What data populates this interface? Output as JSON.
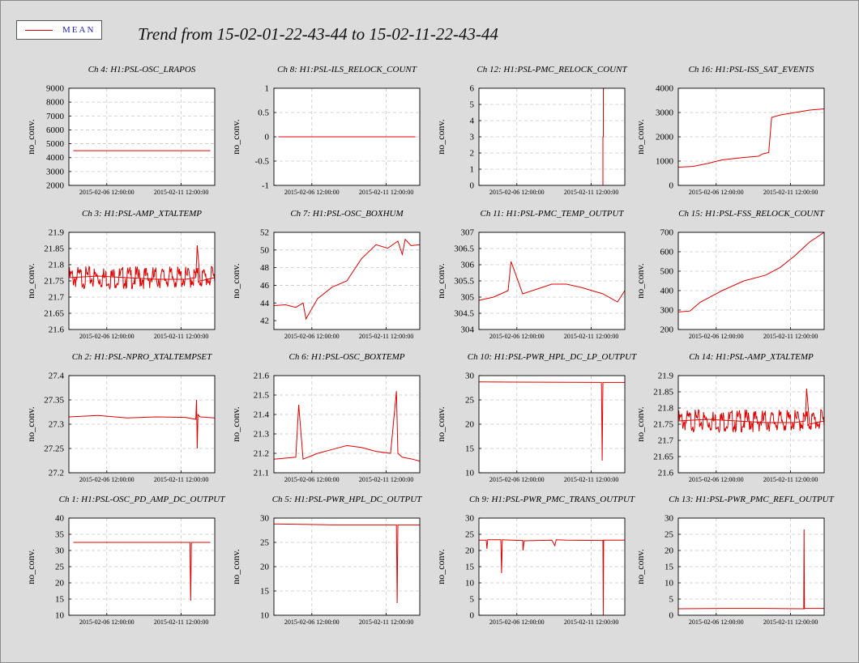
{
  "title": "Trend from 15-02-01-22-43-44 to 15-02-11-22-43-44",
  "legend": {
    "label": "MEAN",
    "color": "#e00000"
  },
  "colors": {
    "series": "#e00000",
    "grid": "#c8c8c8",
    "axis": "#000000",
    "background": "#dcdcdc",
    "plot": "#ffffff"
  },
  "chart_data": [
    {
      "type": "line",
      "title": "Ch 4: H1:PSL-OSC_LRAPOS",
      "ylabel": "no_conv.",
      "xticks": [
        "2015-02-06 12:00:00",
        "2015-02-11 12:00:00"
      ],
      "ylim": [
        2000,
        9000
      ],
      "yticks": [
        "2000",
        "3000",
        "4000",
        "5000",
        "6000",
        "7000",
        "8000",
        "9000"
      ],
      "series": [
        {
          "x": [
            0.03,
            0.97
          ],
          "y": [
            4500,
            4500
          ]
        }
      ]
    },
    {
      "type": "line",
      "title": "Ch 8: H1:PSL-ILS_RELOCK_COUNT",
      "ylabel": "no_conv.",
      "xticks": [
        "2015-02-06 12:00:00",
        "2015-02-11 12:00:00"
      ],
      "ylim": [
        -1,
        1
      ],
      "yticks": [
        "-1",
        "-0.5",
        "0",
        "0.5",
        "1"
      ],
      "series": [
        {
          "x": [
            0.03,
            0.97
          ],
          "y": [
            0,
            0
          ]
        }
      ]
    },
    {
      "type": "line",
      "title": "Ch 12: H1:PSL-PMC_RELOCK_COUNT",
      "ylabel": "no_conv.",
      "xticks": [
        "2015-02-06 12:00:00",
        "2015-02-11 12:00:00"
      ],
      "ylim": [
        0,
        6
      ],
      "yticks": [
        "0",
        "1",
        "2",
        "3",
        "4",
        "5",
        "6"
      ],
      "series": [
        {
          "x": [
            0.85,
            0.85,
            0.853,
            0.853,
            0.86,
            0.86
          ],
          "y": [
            0,
            3,
            3,
            6,
            6,
            6
          ]
        }
      ]
    },
    {
      "type": "line",
      "title": "Ch 16: H1:PSL-ISS_SAT_EVENTS",
      "ylabel": "no_conv.",
      "xticks": [
        "2015-02-06 12:00:00",
        "2015-02-11 12:00:00"
      ],
      "ylim": [
        0,
        4000
      ],
      "yticks": [
        "0",
        "1000",
        "2000",
        "3000",
        "4000"
      ],
      "series": [
        {
          "x": [
            0.0,
            0.1,
            0.2,
            0.3,
            0.45,
            0.55,
            0.58,
            0.62,
            0.64,
            0.7,
            0.8,
            0.9,
            1.0
          ],
          "y": [
            750,
            780,
            900,
            1050,
            1150,
            1200,
            1300,
            1350,
            2800,
            2900,
            3000,
            3100,
            3150
          ]
        }
      ]
    },
    {
      "type": "line",
      "title": "Ch 3: H1:PSL-AMP_XTALTEMP",
      "ylabel": "no_conv.",
      "xticks": [
        "2015-02-06 12:00:00",
        "2015-02-11 12:00:00"
      ],
      "ylim": [
        21.6,
        21.9
      ],
      "yticks": [
        "21.6",
        "21.65",
        "21.7",
        "21.75",
        "21.8",
        "21.85",
        "21.9"
      ],
      "series": [
        {
          "x": [
            0.0,
            0.2,
            0.4,
            0.6,
            0.8,
            0.87,
            0.88,
            0.9,
            1.0
          ],
          "y": [
            21.76,
            21.765,
            21.76,
            21.755,
            21.755,
            21.76,
            21.86,
            21.75,
            21.76
          ]
        }
      ]
    },
    {
      "type": "line",
      "title": "Ch 7: H1:PSL-OSC_BOXHUM",
      "ylabel": "no_conv.",
      "xticks": [
        "2015-02-06 12:00:00",
        "2015-02-11 12:00:00"
      ],
      "ylim": [
        41,
        52
      ],
      "yticks": [
        "42",
        "44",
        "46",
        "48",
        "50",
        "52"
      ],
      "series": [
        {
          "x": [
            0.0,
            0.08,
            0.15,
            0.2,
            0.22,
            0.3,
            0.4,
            0.5,
            0.6,
            0.7,
            0.78,
            0.85,
            0.88,
            0.9,
            0.94,
            1.0
          ],
          "y": [
            43.7,
            43.8,
            43.5,
            44,
            42.2,
            44.5,
            45.8,
            46.5,
            49,
            50.6,
            50.2,
            51,
            49.5,
            51.2,
            50.5,
            50.6
          ]
        }
      ]
    },
    {
      "type": "line",
      "title": "Ch 11: H1:PSL-PMC_TEMP_OUTPUT",
      "ylabel": "no_conv.",
      "xticks": [
        "2015-02-06 12:00:00",
        "2015-02-11 12:00:00"
      ],
      "ylim": [
        304,
        307
      ],
      "yticks": [
        "304",
        "304.5",
        "305",
        "305.5",
        "306",
        "306.5",
        "307"
      ],
      "series": [
        {
          "x": [
            0.0,
            0.1,
            0.2,
            0.22,
            0.3,
            0.5,
            0.6,
            0.7,
            0.85,
            0.95,
            1.0
          ],
          "y": [
            304.9,
            305.0,
            305.2,
            306.1,
            305.1,
            305.4,
            305.4,
            305.3,
            305.1,
            304.85,
            305.2
          ]
        }
      ]
    },
    {
      "type": "line",
      "title": "Ch 15: H1:PSL-FSS_RELOCK_COUNT",
      "ylabel": "no_conv.",
      "xticks": [
        "2015-02-06 12:00:00",
        "2015-02-11 12:00:00"
      ],
      "ylim": [
        200,
        700
      ],
      "yticks": [
        "200",
        "300",
        "400",
        "500",
        "600",
        "700"
      ],
      "series": [
        {
          "x": [
            0.0,
            0.08,
            0.15,
            0.3,
            0.45,
            0.6,
            0.7,
            0.8,
            0.9,
            1.0
          ],
          "y": [
            290,
            295,
            340,
            400,
            450,
            480,
            520,
            580,
            650,
            700
          ]
        }
      ]
    },
    {
      "type": "line",
      "title": "Ch 2: H1:PSL-NPRO_XTALTEMPSET",
      "ylabel": "no_conv.",
      "xticks": [
        "2015-02-06 12:00:00",
        "2015-02-11 12:00:00"
      ],
      "ylim": [
        27.2,
        27.4
      ],
      "yticks": [
        "27.2",
        "27.25",
        "27.3",
        "27.35",
        "27.4"
      ],
      "series": [
        {
          "x": [
            0.0,
            0.2,
            0.4,
            0.6,
            0.8,
            0.87,
            0.875,
            0.88,
            0.885,
            0.9,
            1.0
          ],
          "y": [
            27.315,
            27.318,
            27.313,
            27.315,
            27.314,
            27.31,
            27.35,
            27.25,
            27.32,
            27.315,
            27.313
          ]
        }
      ]
    },
    {
      "type": "line",
      "title": "Ch 6: H1:PSL-OSC_BOXTEMP",
      "ylabel": "no_conv.",
      "xticks": [
        "2015-02-06 12:00:00",
        "2015-02-11 12:00:00"
      ],
      "ylim": [
        21.1,
        21.6
      ],
      "yticks": [
        "21.1",
        "21.2",
        "21.3",
        "21.4",
        "21.5",
        "21.6"
      ],
      "series": [
        {
          "x": [
            0.0,
            0.15,
            0.17,
            0.2,
            0.3,
            0.4,
            0.5,
            0.6,
            0.7,
            0.8,
            0.84,
            0.85,
            0.88,
            0.95,
            1.0
          ],
          "y": [
            21.17,
            21.18,
            21.45,
            21.17,
            21.2,
            21.22,
            21.24,
            21.23,
            21.21,
            21.2,
            21.52,
            21.2,
            21.18,
            21.17,
            21.16
          ]
        }
      ]
    },
    {
      "type": "line",
      "title": "Ch 10: H1:PSL-PWR_HPL_DC_LP_OUTPUT",
      "ylabel": "no_conv.",
      "xticks": [
        "2015-02-06 12:00:00",
        "2015-02-11 12:00:00"
      ],
      "ylim": [
        10,
        30
      ],
      "yticks": [
        "10",
        "15",
        "20",
        "25",
        "30"
      ],
      "series": [
        {
          "x": [
            0.0,
            0.84,
            0.845,
            0.85,
            1.0
          ],
          "y": [
            28.7,
            28.6,
            12.5,
            28.6,
            28.6
          ]
        }
      ]
    },
    {
      "type": "line",
      "title": "Ch 14: H1:PSL-AMP_XTALTEMP",
      "ylabel": "no_conv.",
      "xticks": [
        "2015-02-06 12:00:00",
        "2015-02-11 12:00:00"
      ],
      "ylim": [
        21.6,
        21.9
      ],
      "yticks": [
        "21.6",
        "21.65",
        "21.7",
        "21.75",
        "21.8",
        "21.85",
        "21.9"
      ],
      "series": [
        {
          "x": [
            0.0,
            0.2,
            0.4,
            0.6,
            0.8,
            0.87,
            0.88,
            0.9,
            1.0
          ],
          "y": [
            21.76,
            21.765,
            21.76,
            21.755,
            21.755,
            21.76,
            21.86,
            21.75,
            21.76
          ]
        }
      ]
    },
    {
      "type": "line",
      "title": "Ch 1: H1:PSL-OSC_PD_AMP_DC_OUTPUT",
      "ylabel": "no_conv.",
      "xticks": [
        "2015-02-06 12:00:00",
        "2015-02-11 12:00:00"
      ],
      "ylim": [
        10,
        40
      ],
      "yticks": [
        "10",
        "15",
        "20",
        "25",
        "30",
        "35",
        "40"
      ],
      "series": [
        {
          "x": [
            0.03,
            0.83,
            0.835,
            0.84,
            0.97
          ],
          "y": [
            32.5,
            32.5,
            14.5,
            32.5,
            32.5
          ]
        }
      ]
    },
    {
      "type": "line",
      "title": "Ch 5: H1:PSL-PWR_HPL_DC_OUTPUT",
      "ylabel": "no_conv.",
      "xticks": [
        "2015-02-06 12:00:00",
        "2015-02-11 12:00:00"
      ],
      "ylim": [
        10,
        30
      ],
      "yticks": [
        "10",
        "15",
        "20",
        "25",
        "30"
      ],
      "series": [
        {
          "x": [
            0.0,
            0.4,
            0.84,
            0.845,
            0.85,
            1.0
          ],
          "y": [
            28.8,
            28.6,
            28.6,
            12.5,
            28.6,
            28.6
          ]
        }
      ]
    },
    {
      "type": "line",
      "title": "Ch 9: H1:PSL-PWR_PMC_TRANS_OUTPUT",
      "ylabel": "no_conv.",
      "xticks": [
        "2015-02-06 12:00:00",
        "2015-02-11 12:00:00"
      ],
      "ylim": [
        0,
        30
      ],
      "yticks": [
        "0",
        "5",
        "10",
        "15",
        "20",
        "25",
        "30"
      ],
      "series": [
        {
          "x": [
            0.0,
            0.05,
            0.055,
            0.06,
            0.15,
            0.155,
            0.16,
            0.22,
            0.3,
            0.302,
            0.31,
            0.5,
            0.52,
            0.53,
            0.6,
            0.85,
            0.852,
            0.855,
            1.0
          ],
          "y": [
            23.2,
            23.2,
            20.5,
            23.3,
            23.3,
            13,
            23.3,
            23.2,
            23.1,
            20,
            23,
            23.2,
            21.5,
            23.3,
            23.2,
            23.1,
            0,
            23.2,
            23.2
          ]
        }
      ]
    },
    {
      "type": "line",
      "title": "Ch 13: H1:PSL-PWR_PMC_REFL_OUTPUT",
      "ylabel": "no_conv.",
      "xticks": [
        "2015-02-06 12:00:00",
        "2015-02-11 12:00:00"
      ],
      "ylim": [
        0,
        30
      ],
      "yticks": [
        "0",
        "5",
        "10",
        "15",
        "20",
        "25",
        "30"
      ],
      "series": [
        {
          "x": [
            0.0,
            0.3,
            0.6,
            0.85,
            0.86,
            0.862,
            0.865,
            0.87,
            1.0
          ],
          "y": [
            2,
            2.1,
            2.1,
            2,
            2,
            26.5,
            2,
            2.1,
            2.1
          ]
        }
      ]
    }
  ]
}
